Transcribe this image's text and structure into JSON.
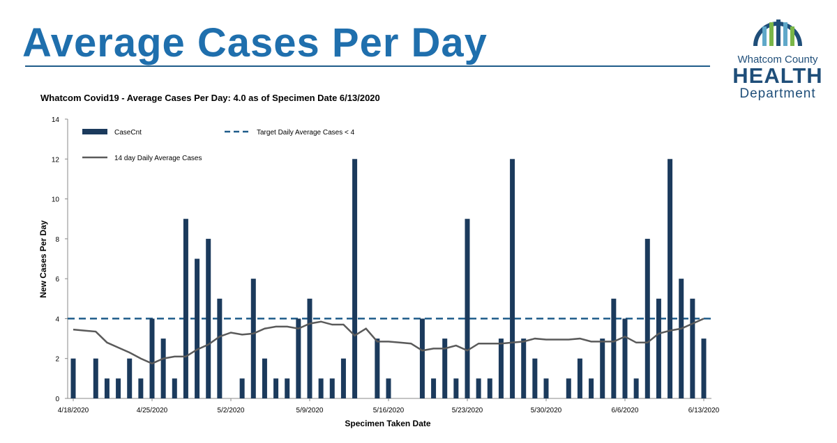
{
  "header": {
    "title": "Average Cases Per Day"
  },
  "logo": {
    "line1": "Whatcom County",
    "line2": "HEALTH",
    "line3": "Department"
  },
  "chart_data": {
    "type": "bar",
    "title": "Whatcom Covid19 - Average Cases Per Day:  4.0 as of Specimen Date 6/13/2020",
    "x_label": "Specimen Taken Date",
    "y_label": "New Cases Per Day",
    "categories": [
      "4/18/2020",
      null,
      null,
      null,
      null,
      null,
      null,
      "4/25/2020",
      null,
      null,
      null,
      null,
      null,
      null,
      "5/2/2020",
      null,
      null,
      null,
      null,
      null,
      null,
      "5/9/2020",
      null,
      null,
      null,
      null,
      null,
      null,
      "5/16/2020",
      null,
      null,
      null,
      null,
      null,
      null,
      "5/23/2020",
      null,
      null,
      null,
      null,
      null,
      null,
      "5/30/2020",
      null,
      null,
      null,
      null,
      null,
      null,
      "6/6/2020",
      null,
      null,
      null,
      null,
      null,
      null,
      "6/13/2020"
    ],
    "series": [
      {
        "name": "CaseCnt",
        "type": "bar",
        "color": "#1b3a5c",
        "values": [
          2,
          0,
          2,
          1,
          1,
          2,
          1,
          4,
          3,
          1,
          9,
          7,
          8,
          5,
          0,
          1,
          6,
          2,
          1,
          1,
          4,
          5,
          1,
          1,
          2,
          12,
          0,
          3,
          1,
          0,
          0,
          4,
          1,
          3,
          1,
          9,
          1,
          1,
          3,
          12,
          3,
          2,
          1,
          0,
          1,
          2,
          1,
          3,
          5,
          4,
          1,
          8,
          5,
          12,
          6,
          5,
          3
        ]
      },
      {
        "name": "14 day Daily Average Cases",
        "type": "line",
        "color": "#5a5a5a",
        "values": [
          3.45,
          3.4,
          3.35,
          2.8,
          2.55,
          2.3,
          2.0,
          1.75,
          2.0,
          2.1,
          2.1,
          2.45,
          2.7,
          3.1,
          3.3,
          3.2,
          3.25,
          3.5,
          3.6,
          3.6,
          3.5,
          3.75,
          3.85,
          3.7,
          3.7,
          3.15,
          3.5,
          2.85,
          2.85,
          2.8,
          2.75,
          2.4,
          2.5,
          2.5,
          2.65,
          2.4,
          2.75,
          2.75,
          2.75,
          2.8,
          2.85,
          3.0,
          2.95,
          2.95,
          2.95,
          3.0,
          2.85,
          2.85,
          2.85,
          3.1,
          2.8,
          2.8,
          3.25,
          3.4,
          3.5,
          3.75,
          4.0
        ]
      }
    ],
    "target": {
      "name": "Target Daily Average Cases < 4",
      "value": 4,
      "color": "#1f5c8a",
      "dashed": true
    },
    "ylim": [
      0,
      14
    ],
    "yticks": [
      0,
      2,
      4,
      6,
      8,
      10,
      12,
      14
    ],
    "grid": false
  }
}
